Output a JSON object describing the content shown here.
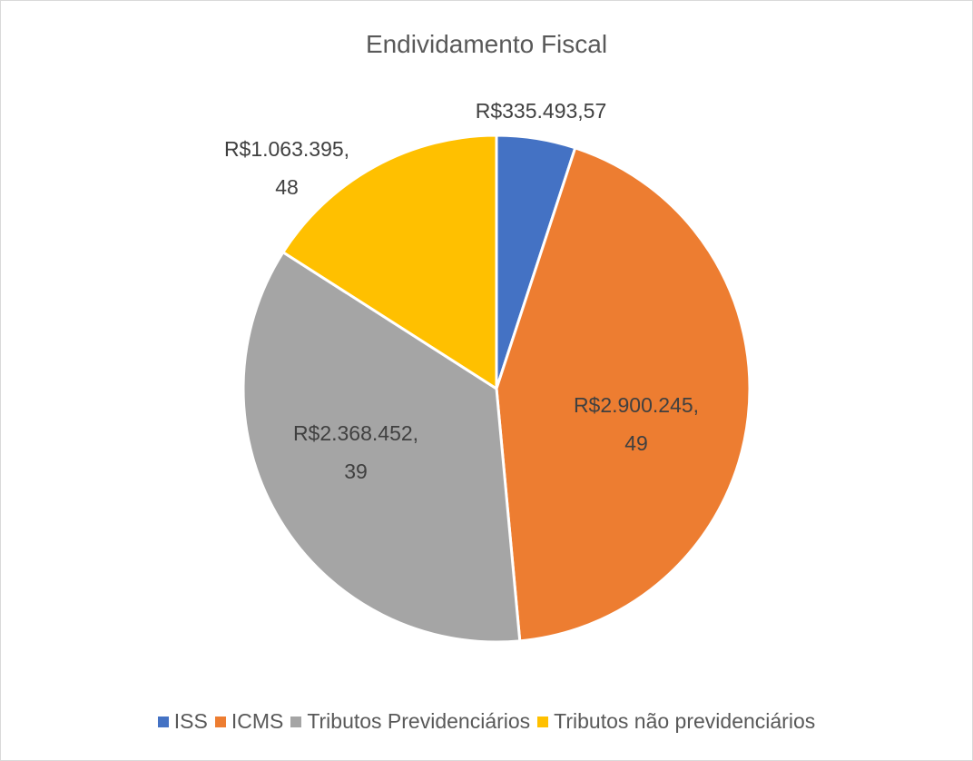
{
  "chart_data": {
    "type": "pie",
    "title": "Endividamento Fiscal",
    "categories": [
      "ISS",
      "ICMS",
      "Tributos Previdenciários",
      "Tributos não previdenciários"
    ],
    "values": [
      335493.57,
      2900245.49,
      2368452.39,
      1063395.48
    ],
    "value_labels": [
      "R$335.493,57",
      "R$2.900.245,49",
      "R$2.368.452,39",
      "R$1.063.395,48"
    ],
    "colors": [
      "#4472c4",
      "#ed7d31",
      "#a5a5a5",
      "#ffc000"
    ],
    "legend": "bottom"
  }
}
